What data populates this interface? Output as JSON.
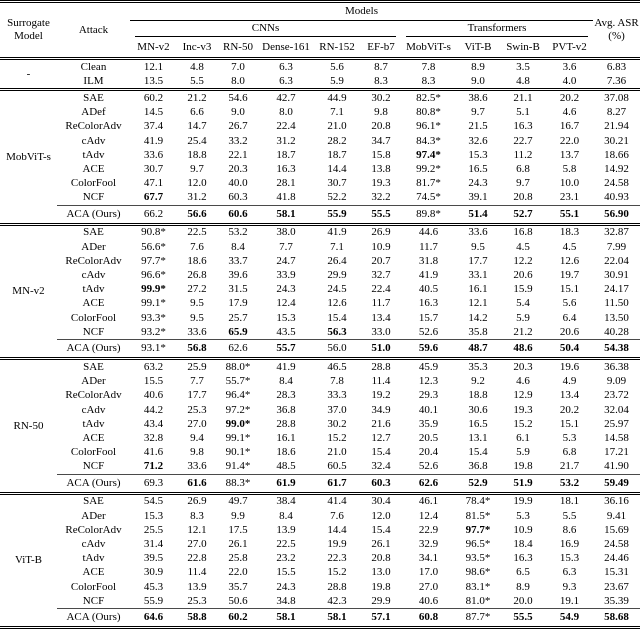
{
  "table": {
    "header": {
      "surrogate_model": "Surrogate Model",
      "attack": "Attack",
      "models": "Models",
      "cnn_group": "CNNs",
      "transformer_group": "Transformers",
      "avg_asr": "Avg. ASR (%)",
      "model_columns": [
        "MN-v2",
        "Inc-v3",
        "RN-50",
        "Dense-161",
        "RN-152",
        "EF-b7",
        "MobViT-s",
        "ViT-B",
        "Swin-B",
        "PVT-v2"
      ]
    },
    "groups": [
      {
        "surrogate": "-",
        "rows": [
          {
            "attack": "Clean",
            "values": [
              "12.1",
              "4.8",
              "7.0",
              "6.3",
              "5.6",
              "8.7",
              "7.8",
              "8.9",
              "3.5",
              "3.6",
              "6.83"
            ],
            "bold": []
          },
          {
            "attack": "ILM",
            "values": [
              "13.5",
              "5.5",
              "8.0",
              "6.3",
              "5.9",
              "8.3",
              "8.3",
              "9.0",
              "4.8",
              "4.0",
              "7.36"
            ],
            "bold": []
          }
        ]
      },
      {
        "surrogate": "MobViT-s",
        "rows": [
          {
            "attack": "SAE",
            "values": [
              "60.2",
              "21.2",
              "54.6",
              "42.7",
              "44.9",
              "30.2",
              "82.5*",
              "38.6",
              "21.1",
              "20.2",
              "37.08"
            ],
            "bold": []
          },
          {
            "attack": "ADef",
            "values": [
              "14.5",
              "6.6",
              "9.0",
              "8.0",
              "7.1",
              "9.8",
              "80.8*",
              "9.7",
              "5.1",
              "4.6",
              "8.27"
            ],
            "bold": []
          },
          {
            "attack": "ReColorAdv",
            "values": [
              "37.4",
              "14.7",
              "26.7",
              "22.4",
              "21.0",
              "20.8",
              "96.1*",
              "21.5",
              "16.3",
              "16.7",
              "21.94"
            ],
            "bold": []
          },
          {
            "attack": "cAdv",
            "values": [
              "41.9",
              "25.4",
              "33.2",
              "31.2",
              "28.2",
              "34.7",
              "84.3*",
              "32.6",
              "22.7",
              "22.0",
              "30.21"
            ],
            "bold": []
          },
          {
            "attack": "tAdv",
            "values": [
              "33.6",
              "18.8",
              "22.1",
              "18.7",
              "18.7",
              "15.8",
              "97.4*",
              "15.3",
              "11.2",
              "13.7",
              "18.66"
            ],
            "bold": [
              6
            ]
          },
          {
            "attack": "ACE",
            "values": [
              "30.7",
              "9.7",
              "20.3",
              "16.3",
              "14.4",
              "13.8",
              "99.2*",
              "16.5",
              "6.8",
              "5.8",
              "14.92"
            ],
            "bold": []
          },
          {
            "attack": "ColorFool",
            "values": [
              "47.1",
              "12.0",
              "40.0",
              "28.1",
              "30.7",
              "19.3",
              "81.7*",
              "24.3",
              "9.7",
              "10.0",
              "24.58"
            ],
            "bold": []
          },
          {
            "attack": "NCF",
            "values": [
              "67.7",
              "31.2",
              "60.3",
              "41.8",
              "52.2",
              "32.2",
              "74.5*",
              "39.1",
              "20.8",
              "23.1",
              "40.93"
            ],
            "bold": [
              0
            ]
          },
          {
            "attack": "ACA (Ours)",
            "values": [
              "66.2",
              "56.6",
              "60.6",
              "58.1",
              "55.9",
              "55.5",
              "89.8*",
              "51.4",
              "52.7",
              "55.1",
              "56.90"
            ],
            "bold": [
              1,
              2,
              3,
              4,
              5,
              7,
              8,
              9,
              10
            ],
            "rule_above": true
          }
        ]
      },
      {
        "surrogate": "MN-v2",
        "rows": [
          {
            "attack": "SAE",
            "values": [
              "90.8*",
              "22.5",
              "53.2",
              "38.0",
              "41.9",
              "26.9",
              "44.6",
              "33.6",
              "16.8",
              "18.3",
              "32.87"
            ],
            "bold": []
          },
          {
            "attack": "ADer",
            "values": [
              "56.6*",
              "7.6",
              "8.4",
              "7.7",
              "7.1",
              "10.9",
              "11.7",
              "9.5",
              "4.5",
              "4.5",
              "7.99"
            ],
            "bold": []
          },
          {
            "attack": "ReColorAdv",
            "values": [
              "97.7*",
              "18.6",
              "33.7",
              "24.7",
              "26.4",
              "20.7",
              "31.8",
              "17.7",
              "12.2",
              "12.6",
              "22.04"
            ],
            "bold": []
          },
          {
            "attack": "cAdv",
            "values": [
              "96.6*",
              "26.8",
              "39.6",
              "33.9",
              "29.9",
              "32.7",
              "41.9",
              "33.1",
              "20.6",
              "19.7",
              "30.91"
            ],
            "bold": []
          },
          {
            "attack": "tAdv",
            "values": [
              "99.9*",
              "27.2",
              "31.5",
              "24.3",
              "24.5",
              "22.4",
              "40.5",
              "16.1",
              "15.9",
              "15.1",
              "24.17"
            ],
            "bold": [
              0
            ]
          },
          {
            "attack": "ACE",
            "values": [
              "99.1*",
              "9.5",
              "17.9",
              "12.4",
              "12.6",
              "11.7",
              "16.3",
              "12.1",
              "5.4",
              "5.6",
              "11.50"
            ],
            "bold": []
          },
          {
            "attack": "ColorFool",
            "values": [
              "93.3*",
              "9.5",
              "25.7",
              "15.3",
              "15.4",
              "13.4",
              "15.7",
              "14.2",
              "5.9",
              "6.4",
              "13.50"
            ],
            "bold": []
          },
          {
            "attack": "NCF",
            "values": [
              "93.2*",
              "33.6",
              "65.9",
              "43.5",
              "56.3",
              "33.0",
              "52.6",
              "35.8",
              "21.2",
              "20.6",
              "40.28"
            ],
            "bold": [
              2,
              4
            ]
          },
          {
            "attack": "ACA (Ours)",
            "values": [
              "93.1*",
              "56.8",
              "62.6",
              "55.7",
              "56.0",
              "51.0",
              "59.6",
              "48.7",
              "48.6",
              "50.4",
              "54.38"
            ],
            "bold": [
              1,
              3,
              5,
              6,
              7,
              8,
              9,
              10
            ],
            "rule_above": true
          }
        ]
      },
      {
        "surrogate": "RN-50",
        "rows": [
          {
            "attack": "SAE",
            "values": [
              "63.2",
              "25.9",
              "88.0*",
              "41.9",
              "46.5",
              "28.8",
              "45.9",
              "35.3",
              "20.3",
              "19.6",
              "36.38"
            ],
            "bold": []
          },
          {
            "attack": "ADer",
            "values": [
              "15.5",
              "7.7",
              "55.7*",
              "8.4",
              "7.8",
              "11.4",
              "12.3",
              "9.2",
              "4.6",
              "4.9",
              "9.09"
            ],
            "bold": []
          },
          {
            "attack": "ReColorAdv",
            "values": [
              "40.6",
              "17.7",
              "96.4*",
              "28.3",
              "33.3",
              "19.2",
              "29.3",
              "18.8",
              "12.9",
              "13.4",
              "23.72"
            ],
            "bold": []
          },
          {
            "attack": "cAdv",
            "values": [
              "44.2",
              "25.3",
              "97.2*",
              "36.8",
              "37.0",
              "34.9",
              "40.1",
              "30.6",
              "19.3",
              "20.2",
              "32.04"
            ],
            "bold": []
          },
          {
            "attack": "tAdv",
            "values": [
              "43.4",
              "27.0",
              "99.0*",
              "28.8",
              "30.2",
              "21.6",
              "35.9",
              "16.5",
              "15.2",
              "15.1",
              "25.97"
            ],
            "bold": [
              2
            ]
          },
          {
            "attack": "ACE",
            "values": [
              "32.8",
              "9.4",
              "99.1*",
              "16.1",
              "15.2",
              "12.7",
              "20.5",
              "13.1",
              "6.1",
              "5.3",
              "14.58"
            ],
            "bold": []
          },
          {
            "attack": "ColorFool",
            "values": [
              "41.6",
              "9.8",
              "90.1*",
              "18.6",
              "21.0",
              "15.4",
              "20.4",
              "15.4",
              "5.9",
              "6.8",
              "17.21"
            ],
            "bold": []
          },
          {
            "attack": "NCF",
            "values": [
              "71.2",
              "33.6",
              "91.4*",
              "48.5",
              "60.5",
              "32.4",
              "52.6",
              "36.8",
              "19.8",
              "21.7",
              "41.90"
            ],
            "bold": [
              0
            ]
          },
          {
            "attack": "ACA (Ours)",
            "values": [
              "69.3",
              "61.6",
              "88.3*",
              "61.9",
              "61.7",
              "60.3",
              "62.6",
              "52.9",
              "51.9",
              "53.2",
              "59.49"
            ],
            "bold": [
              1,
              3,
              4,
              5,
              6,
              7,
              8,
              9,
              10
            ],
            "rule_above": true
          }
        ]
      },
      {
        "surrogate": "ViT-B",
        "rows": [
          {
            "attack": "SAE",
            "values": [
              "54.5",
              "26.9",
              "49.7",
              "38.4",
              "41.4",
              "30.4",
              "46.1",
              "78.4*",
              "19.9",
              "18.1",
              "36.16"
            ],
            "bold": []
          },
          {
            "attack": "ADer",
            "values": [
              "15.3",
              "8.3",
              "9.9",
              "8.4",
              "7.6",
              "12.0",
              "12.4",
              "81.5*",
              "5.3",
              "5.5",
              "9.41"
            ],
            "bold": []
          },
          {
            "attack": "ReColorAdv",
            "values": [
              "25.5",
              "12.1",
              "17.5",
              "13.9",
              "14.4",
              "15.4",
              "22.9",
              "97.7*",
              "10.9",
              "8.6",
              "15.69"
            ],
            "bold": [
              7
            ]
          },
          {
            "attack": "cAdv",
            "values": [
              "31.4",
              "27.0",
              "26.1",
              "22.5",
              "19.9",
              "26.1",
              "32.9",
              "96.5*",
              "18.4",
              "16.9",
              "24.58"
            ],
            "bold": []
          },
          {
            "attack": "tAdv",
            "values": [
              "39.5",
              "22.8",
              "25.8",
              "23.2",
              "22.3",
              "20.8",
              "34.1",
              "93.5*",
              "16.3",
              "15.3",
              "24.46"
            ],
            "bold": []
          },
          {
            "attack": "ACE",
            "values": [
              "30.9",
              "11.4",
              "22.0",
              "15.5",
              "15.2",
              "13.0",
              "17.0",
              "98.6*",
              "6.5",
              "6.3",
              "15.31"
            ],
            "bold": []
          },
          {
            "attack": "ColorFool",
            "values": [
              "45.3",
              "13.9",
              "35.7",
              "24.3",
              "28.8",
              "19.8",
              "27.0",
              "83.1*",
              "8.9",
              "9.3",
              "23.67"
            ],
            "bold": []
          },
          {
            "attack": "NCF",
            "values": [
              "55.9",
              "25.3",
              "50.6",
              "34.8",
              "42.3",
              "29.9",
              "40.6",
              "81.0*",
              "20.0",
              "19.1",
              "35.39"
            ],
            "bold": []
          },
          {
            "attack": "ACA (Ours)",
            "values": [
              "64.6",
              "58.8",
              "60.2",
              "58.1",
              "58.1",
              "57.1",
              "60.8",
              "87.7*",
              "55.5",
              "54.9",
              "58.68"
            ],
            "bold": [
              0,
              1,
              2,
              3,
              4,
              5,
              6,
              8,
              9,
              10
            ],
            "rule_above": true
          }
        ]
      }
    ]
  }
}
